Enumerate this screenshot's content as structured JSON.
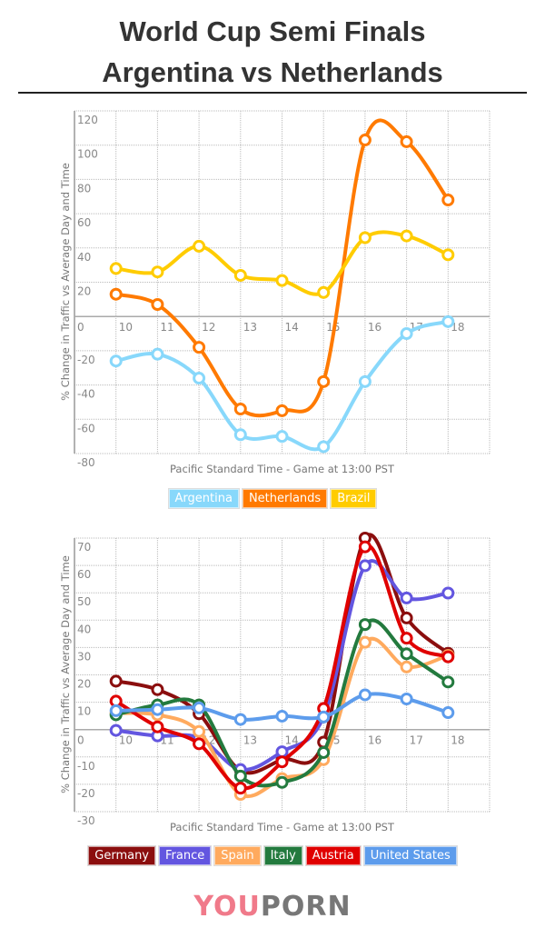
{
  "title": {
    "line1": "World Cup Semi Finals",
    "line2": "Argentina vs Netherlands"
  },
  "logo": {
    "part1": "YOU",
    "part2": "PORN",
    "color1": "#f07a8a",
    "color2": "#777777"
  },
  "chart_data": [
    {
      "type": "line",
      "xlabel": "Pacific Standard Time - Game at 13:00 PST",
      "ylabel": "% Change in Traffic vs Average Day and Time",
      "xlim": [
        9,
        19
      ],
      "ylim": [
        -80,
        120
      ],
      "x_ticks": [
        10,
        11,
        12,
        13,
        14,
        15,
        16,
        17,
        18
      ],
      "x_zero_label": "0",
      "y_ticks": [
        120,
        100,
        80,
        60,
        40,
        20,
        -20,
        -40,
        -60,
        -80
      ],
      "grid": true,
      "legend_position": "bottom",
      "x": [
        10,
        11,
        12,
        13,
        14,
        15,
        16,
        17,
        18
      ],
      "series": [
        {
          "name": "Argentina",
          "color": "#88d8fb",
          "values": [
            -26,
            -22,
            -36,
            -69,
            -70,
            -76,
            -38,
            -10,
            -3
          ]
        },
        {
          "name": "Netherlands",
          "color": "#ff7a00",
          "values": [
            13,
            7,
            -18,
            -54,
            -55,
            -38,
            103,
            102,
            68
          ]
        },
        {
          "name": "Brazil",
          "color": "#ffcc00",
          "values": [
            28,
            26,
            41,
            24,
            21,
            14,
            46,
            47,
            36
          ]
        }
      ]
    },
    {
      "type": "line",
      "xlabel": "Pacific Standard Time - Game at 13:00 PST",
      "ylabel": "% Change in Traffic vs Average Day and Time",
      "xlim": [
        9,
        19
      ],
      "ylim": [
        -30,
        70
      ],
      "x_ticks": [
        10,
        11,
        12,
        13,
        14,
        15,
        16,
        17,
        18
      ],
      "x_zero_label": "0",
      "y_ticks": [
        70,
        60,
        50,
        40,
        30,
        20,
        10,
        -10,
        -20,
        -30
      ],
      "grid": true,
      "legend_position": "bottom",
      "x": [
        10,
        11,
        12,
        13,
        14,
        15,
        16,
        17,
        18
      ],
      "series": [
        {
          "name": "Germany",
          "color": "#8b0e0e",
          "values": [
            17.7,
            14.6,
            5.8,
            -15,
            -11,
            -4.6,
            70,
            40.8,
            27.9
          ]
        },
        {
          "name": "France",
          "color": "#6356e0",
          "values": [
            -0.3,
            -2.3,
            -3,
            -14.6,
            -8.1,
            4.6,
            59.9,
            48.1,
            49.9
          ]
        },
        {
          "name": "Spain",
          "color": "#ffaa5e",
          "values": [
            6,
            5.4,
            -0.7,
            -23.7,
            -17.9,
            -11,
            31.9,
            22.9,
            27.1
          ]
        },
        {
          "name": "Italy",
          "color": "#237a3e",
          "values": [
            5.4,
            9,
            9,
            -17,
            -19.3,
            -8.4,
            38.4,
            27.7,
            17.4
          ]
        },
        {
          "name": "Austria",
          "color": "#e00000",
          "values": [
            10.4,
            1,
            -5.2,
            -21.4,
            -11.8,
            7.7,
            66.8,
            33.4,
            26.6
          ]
        },
        {
          "name": "United States",
          "color": "#5d9cec",
          "values": [
            6.9,
            7.3,
            7.9,
            3.7,
            4.9,
            4.6,
            12.7,
            11.2,
            6.2
          ]
        }
      ]
    }
  ]
}
